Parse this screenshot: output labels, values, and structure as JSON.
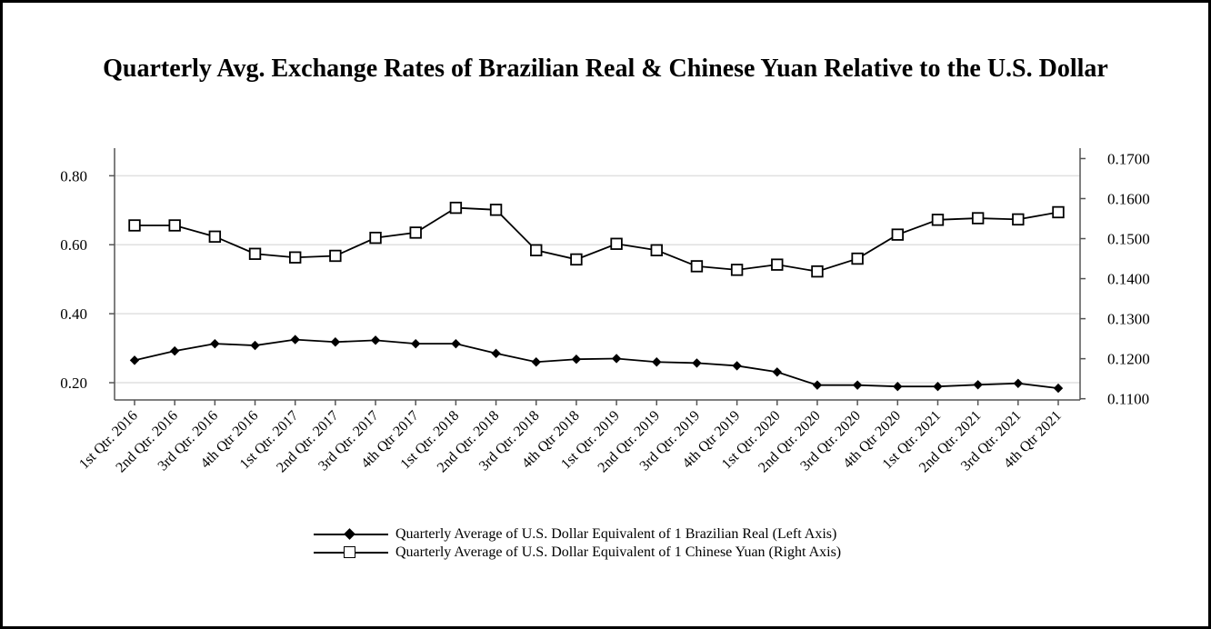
{
  "title": "Quarterly Avg. Exchange Rates of Brazilian Real & Chinese Yuan Relative to the U.S. Dollar",
  "chart_data": {
    "type": "line",
    "title": "Quarterly Avg. Exchange Rates of Brazilian Real & Chinese Yuan Relative to the U.S. Dollar",
    "xlabel": "",
    "ylabel_left": "",
    "ylabel_right": "",
    "categories": [
      "1st Qtr. 2016",
      "2nd Qtr. 2016",
      "3rd Qtr. 2016",
      "4th Qtr 2016",
      "1st Qtr. 2017",
      "2nd Qtr. 2017",
      "3rd Qtr. 2017",
      "4th Qtr 2017",
      "1st Qtr. 2018",
      "2nd Qtr. 2018",
      "3rd Qtr. 2018",
      "4th Qtr 2018",
      "1st Qtr. 2019",
      "2nd Qtr. 2019",
      "3rd Qtr. 2019",
      "4th Qtr 2019",
      "1st Qtr. 2020",
      "2nd Qtr. 2020",
      "3rd Qtr. 2020",
      "4th Qtr 2020",
      "1st Qtr. 2021",
      "2nd Qtr. 2021",
      "3rd Qtr. 2021",
      "4th Qtr 2021"
    ],
    "left_axis": {
      "ylim": [
        0.15,
        0.88
      ],
      "ticks": [
        "0.20",
        "0.40",
        "0.60",
        "0.80"
      ],
      "tick_values": [
        0.2,
        0.4,
        0.6,
        0.8
      ]
    },
    "right_axis": {
      "ylim": [
        0.1097,
        0.1726
      ],
      "ticks": [
        "0.1100",
        "0.1200",
        "0.1300",
        "0.1400",
        "0.1500",
        "0.1600",
        "0.1700"
      ],
      "tick_values": [
        0.11,
        0.12,
        0.13,
        0.14,
        0.15,
        0.16,
        0.17
      ]
    },
    "grid": "horizontal",
    "legend_position": "bottom",
    "series": [
      {
        "name": "Quarterly Average of U.S. Dollar Equivalent of 1 Brazilian Real (Left Axis)",
        "axis": "left",
        "marker": "diamond",
        "values": [
          0.265,
          0.292,
          0.313,
          0.308,
          0.325,
          0.318,
          0.323,
          0.313,
          0.313,
          0.285,
          0.26,
          0.268,
          0.27,
          0.26,
          0.257,
          0.249,
          0.231,
          0.193,
          0.193,
          0.189,
          0.189,
          0.194,
          0.198,
          0.184
        ]
      },
      {
        "name": "Quarterly Average of U.S. Dollar Equivalent of 1 Chinese Yuan (Right Axis)",
        "axis": "right",
        "marker": "square",
        "values": [
          0.1533,
          0.1533,
          0.1505,
          0.1462,
          0.1453,
          0.1457,
          0.1502,
          0.1515,
          0.1577,
          0.1572,
          0.1471,
          0.1448,
          0.1487,
          0.1471,
          0.1431,
          0.1422,
          0.1435,
          0.1418,
          0.145,
          0.151,
          0.1547,
          0.1551,
          0.1548,
          0.1566
        ]
      }
    ]
  },
  "legend": {
    "brl_label": "Quarterly Average of U.S. Dollar Equivalent of 1 Brazilian Real (Left Axis)",
    "cny_label": "Quarterly Average of U.S. Dollar Equivalent of 1 Chinese Yuan (Right Axis)"
  },
  "colors": {
    "line": "#000000",
    "grid": "#e0e0e0",
    "axis": "#555555"
  }
}
